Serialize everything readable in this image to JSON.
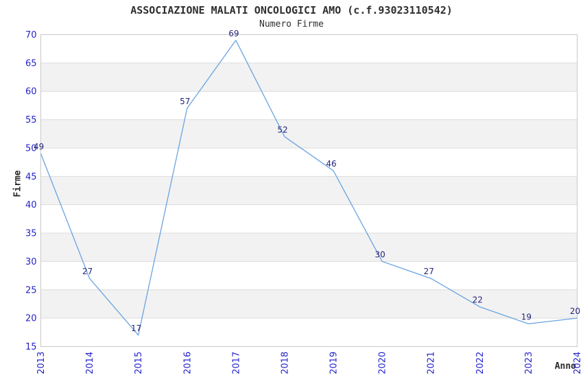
{
  "title": "ASSOCIAZIONE MALATI ONCOLOGICI AMO (c.f.93023110542)",
  "subtitle": "Numero Firme",
  "colors": {
    "line": "#69A3E0",
    "tick_label": "#2323CC",
    "data_label": "#23237A",
    "band": "#F2F2F2",
    "grid": "#DCDCDC",
    "border": "#C8C8C8",
    "text": "#2E2E2E",
    "background": "#FFFFFF"
  },
  "chart_data": {
    "type": "line",
    "title": "ASSOCIAZIONE MALATI ONCOLOGICI AMO (c.f.93023110542)",
    "subtitle": "Numero Firme",
    "xlabel": "Anno",
    "ylabel": "Firme",
    "categories": [
      "2013",
      "2014",
      "2015",
      "2016",
      "2017",
      "2018",
      "2019",
      "2020",
      "2021",
      "2022",
      "2023",
      "2024"
    ],
    "values": [
      49,
      27,
      17,
      57,
      69,
      52,
      46,
      30,
      27,
      22,
      19,
      20
    ],
    "ylim": [
      15,
      70
    ],
    "ytick_step": 5,
    "yticks": [
      15,
      20,
      25,
      30,
      35,
      40,
      45,
      50,
      55,
      60,
      65,
      70
    ],
    "grid": "horizontal-only",
    "bands": "alternating-gray",
    "legend_position": "none",
    "data_labels_visible": true,
    "x_tick_rotation": 90
  }
}
